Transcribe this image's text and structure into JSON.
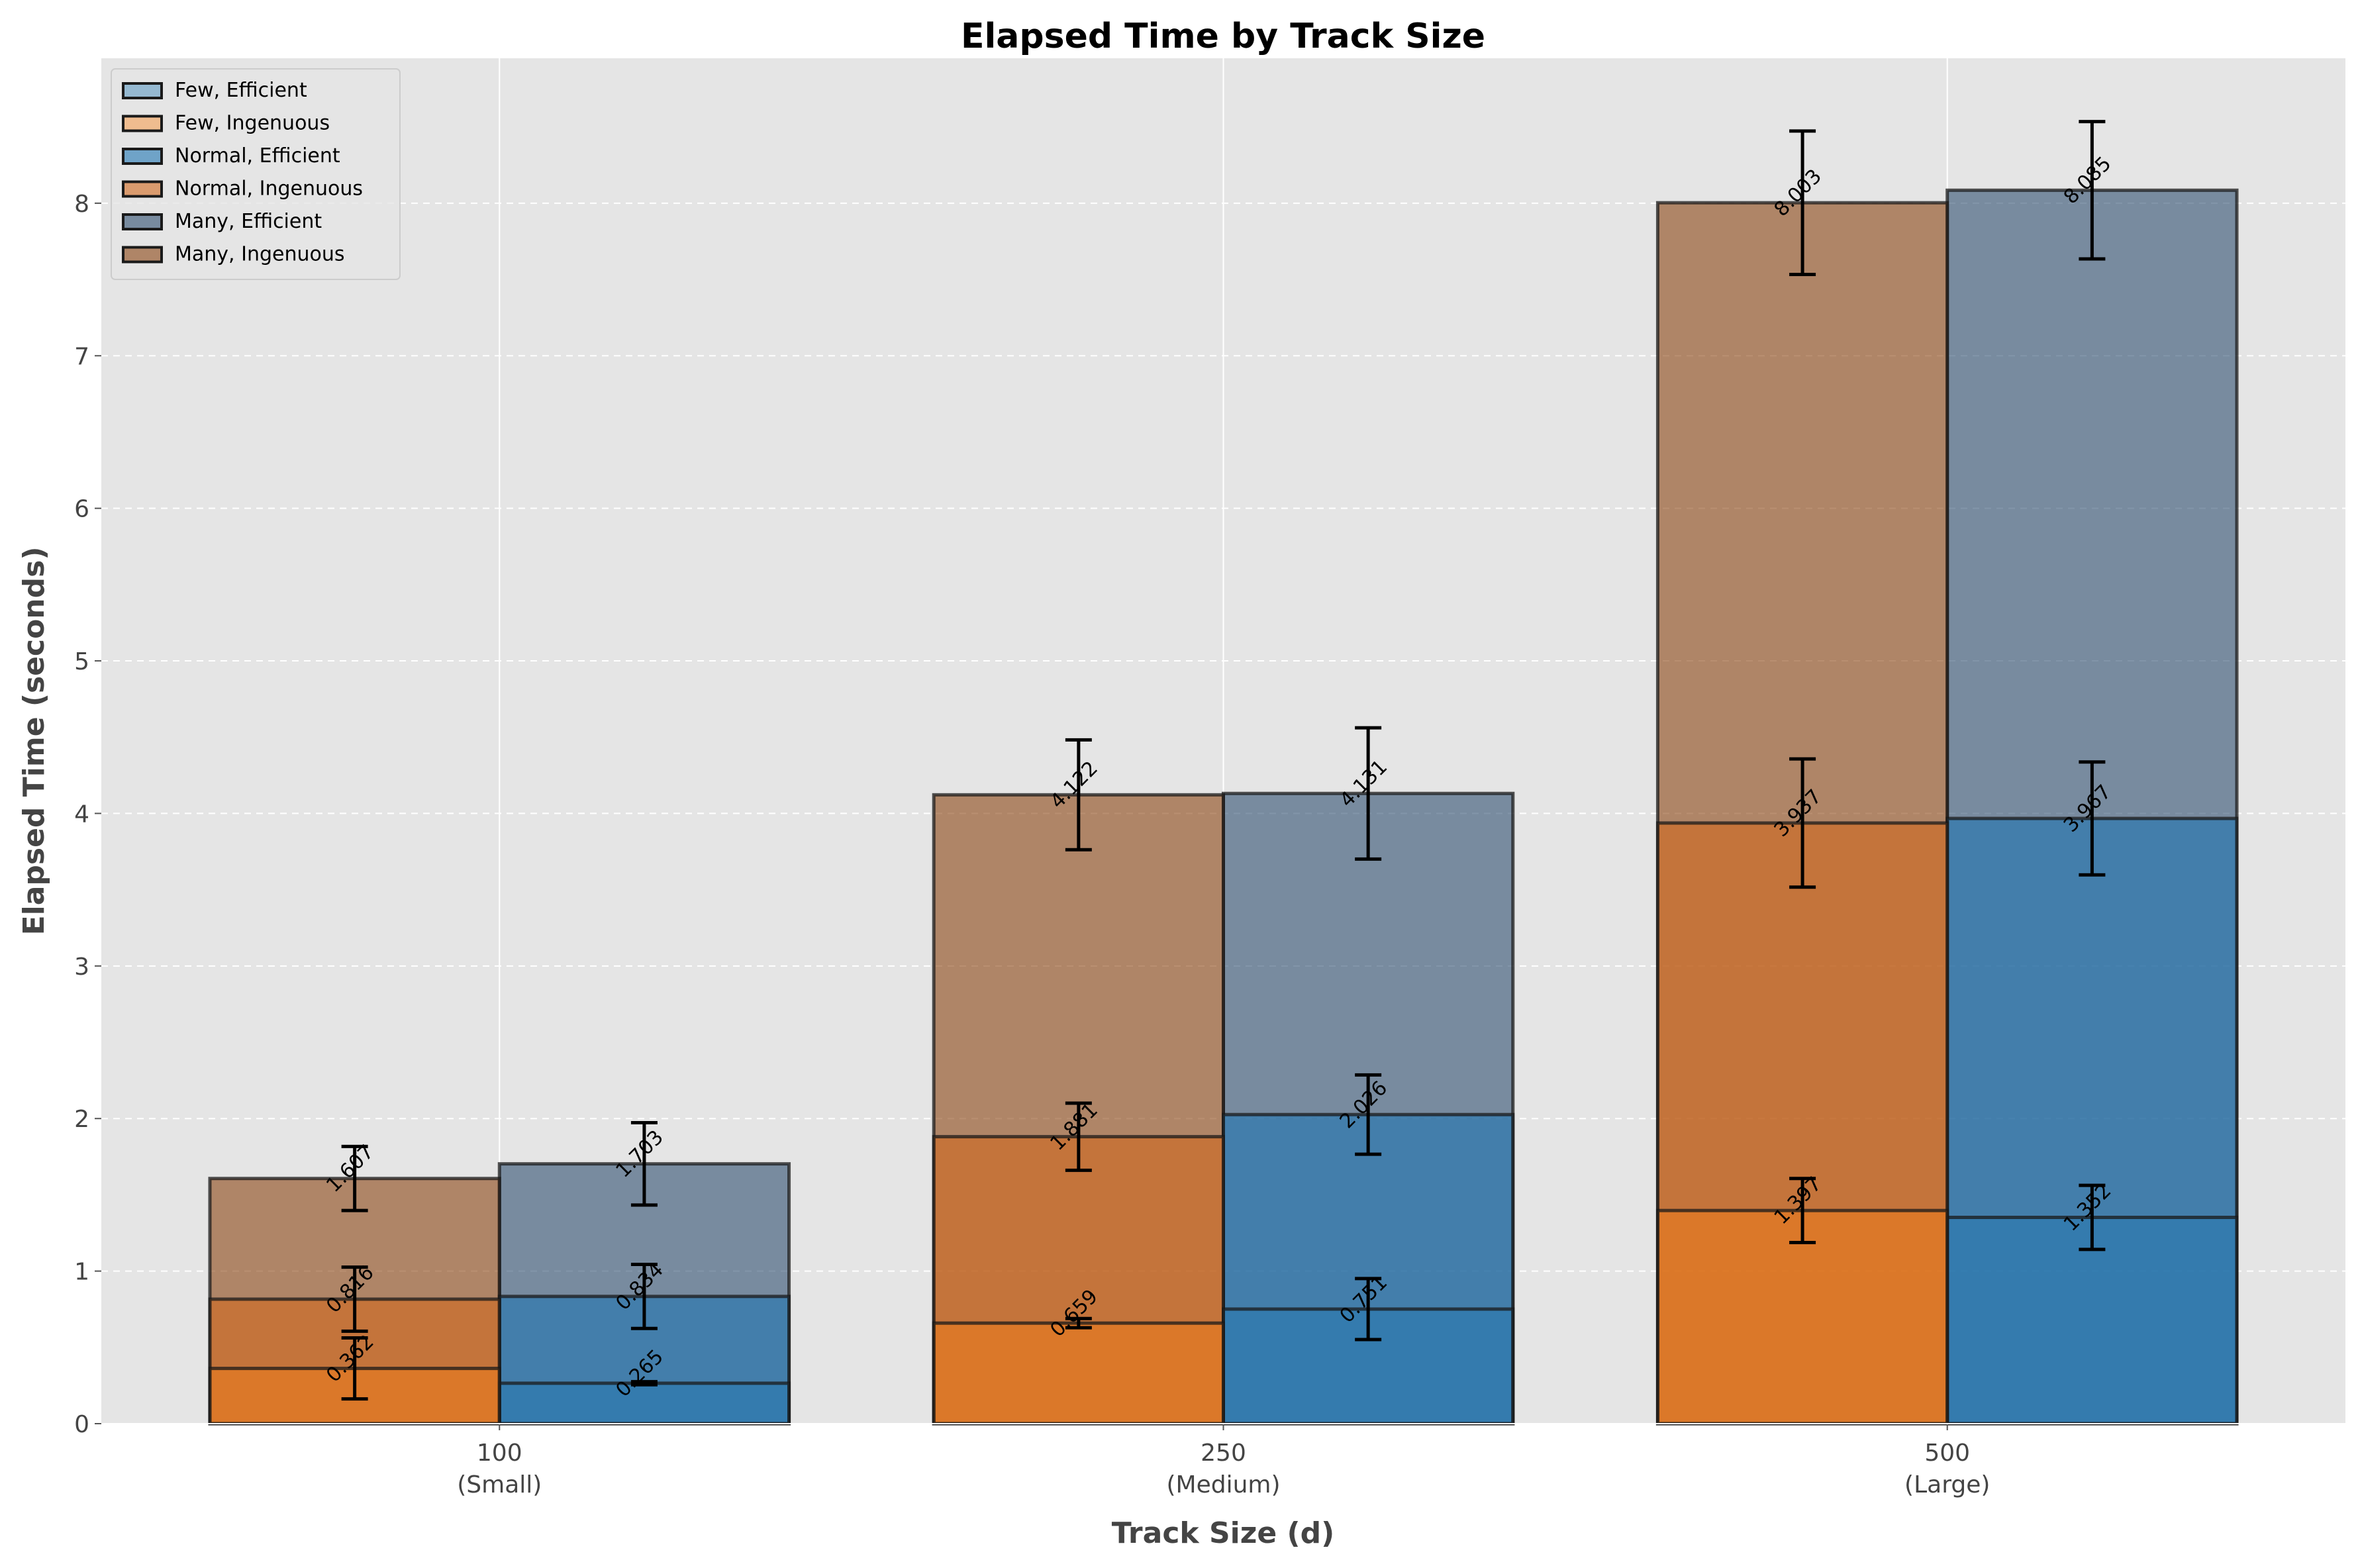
{
  "chart_data": {
    "type": "bar",
    "title": "Elapsed Time by Track Size",
    "xlabel": "Track Size (d)",
    "ylabel": "Elapsed Time (seconds)",
    "categories": [
      "100",
      "250",
      "500"
    ],
    "category_sublabels": [
      "(Small)",
      "(Medium)",
      "(Large)"
    ],
    "ylim": [
      0,
      8.95
    ],
    "yticks": [
      0,
      1,
      2,
      3,
      4,
      5,
      6,
      7,
      8
    ],
    "grid": "y-dashed",
    "legend_position": "top-left",
    "overlay": true,
    "series": [
      {
        "name": "Few, Efficient",
        "group": "Efficient",
        "values": [
          0.265,
          0.751,
          1.352
        ],
        "errors": [
          0.01,
          0.2,
          0.21
        ],
        "value_labels": [
          "0.265",
          "0.751",
          "1.352"
        ],
        "color": "#1f77b4",
        "opacity": 0.4
      },
      {
        "name": "Few, Ingenuous",
        "group": "Ingenuous",
        "values": [
          0.362,
          0.659,
          1.397
        ],
        "errors": [
          0.2,
          0.03,
          0.21
        ],
        "value_labels": [
          "0.362",
          "0.659",
          "1.397"
        ],
        "color": "#ff7f0e",
        "opacity": 0.4
      },
      {
        "name": "Normal, Efficient",
        "group": "Efficient",
        "values": [
          0.834,
          2.026,
          3.967
        ],
        "errors": [
          0.21,
          0.26,
          0.37
        ],
        "value_labels": [
          "0.834",
          "2.026",
          "3.967"
        ],
        "color": "#1f77b4",
        "opacity": 0.6
      },
      {
        "name": "Normal, Ingenuous",
        "group": "Ingenuous",
        "values": [
          0.816,
          1.881,
          3.937
        ],
        "errors": [
          0.21,
          0.22,
          0.42
        ],
        "value_labels": [
          "0.816",
          "1.881",
          "3.937"
        ],
        "color": "#d2691e",
        "opacity": 0.6
      },
      {
        "name": "Many, Efficient",
        "group": "Efficient",
        "values": [
          1.703,
          4.131,
          8.085
        ],
        "errors": [
          0.27,
          0.43,
          0.45
        ],
        "value_labels": [
          "1.703",
          "4.131",
          "8.085"
        ],
        "color": "#2f4f6f",
        "opacity": 0.6
      },
      {
        "name": "Many, Ingenuous",
        "group": "Ingenuous",
        "values": [
          1.607,
          4.122,
          8.003
        ],
        "errors": [
          0.21,
          0.36,
          0.47
        ],
        "value_labels": [
          "1.607",
          "4.122",
          "8.003"
        ],
        "color": "#8b4513",
        "opacity": 0.6
      }
    ]
  }
}
